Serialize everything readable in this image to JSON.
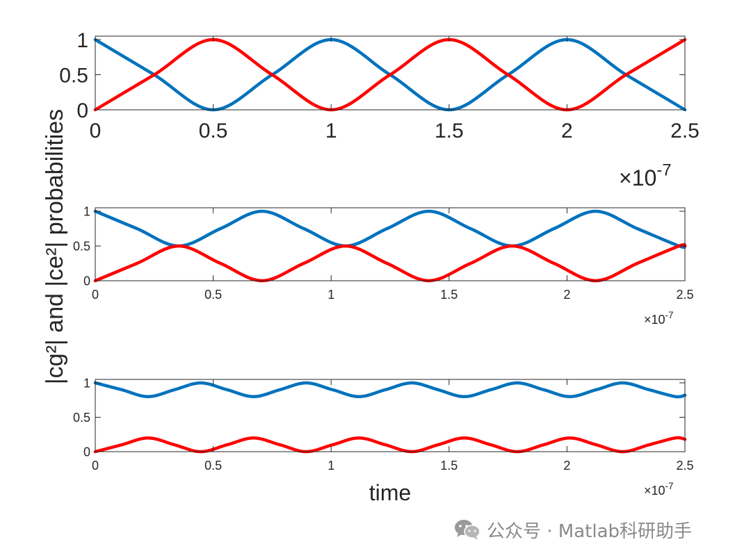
{
  "figure": {
    "ylabel": "|cg²| and |ce²| probabilities",
    "xlabel": "time",
    "exponent_base": "×10",
    "exponent_power": "-7"
  },
  "colors": {
    "cg": "#0072BD",
    "ce": "#FF0000",
    "axis": "#262626"
  },
  "watermark": {
    "icon": "wechat-icon",
    "text": "公众号 · Matlab科研助手"
  },
  "chart_data": [
    {
      "type": "line",
      "xlim": [
        0,
        2.5e-07
      ],
      "ylim": [
        0,
        1.05
      ],
      "x_ticks": [
        0,
        5e-08,
        1e-07,
        1.5e-07,
        2e-07,
        2.5e-07
      ],
      "x_tick_labels": [
        "0",
        "0.5",
        "1",
        "1.5",
        "2",
        "2.5"
      ],
      "y_ticks": [
        0,
        0.5,
        1
      ],
      "y_tick_labels": [
        "0",
        "0.5",
        "1"
      ],
      "grid": false,
      "series": [
        {
          "color": "#0072BD",
          "x": [
            0,
            2.5e-08,
            5e-08,
            7.5e-08,
            1e-07,
            1.25e-07,
            1.5e-07,
            1.75e-07,
            2e-07,
            2.25e-07,
            2.5e-07
          ],
          "y": [
            1,
            0.5,
            0,
            0.5,
            1,
            0.5,
            0,
            0.5,
            1,
            0.5,
            0
          ]
        },
        {
          "color": "#FF0000",
          "x": [
            0,
            2.5e-08,
            5e-08,
            7.5e-08,
            1e-07,
            1.25e-07,
            1.5e-07,
            1.75e-07,
            2e-07,
            2.25e-07,
            2.5e-07
          ],
          "y": [
            0,
            0.5,
            1,
            0.5,
            0,
            0.5,
            1,
            0.5,
            0,
            0.5,
            1
          ]
        }
      ]
    },
    {
      "type": "line",
      "xlim": [
        0,
        2.5e-07
      ],
      "ylim": [
        0,
        1.05
      ],
      "x_ticks": [
        0,
        5e-08,
        1e-07,
        1.5e-07,
        2e-07,
        2.5e-07
      ],
      "x_tick_labels": [
        "0",
        "0.5",
        "1",
        "1.5",
        "2",
        "2.5"
      ],
      "y_ticks": [
        0,
        0.5,
        1
      ],
      "y_tick_labels": [
        "0",
        "0.5",
        "1"
      ],
      "grid": false,
      "series": [
        {
          "color": "#0072BD",
          "x": [
            0,
            1.77e-08,
            3.54e-08,
            5.31e-08,
            7.07e-08,
            8.84e-08,
            1.061e-07,
            1.237e-07,
            1.414e-07,
            1.591e-07,
            1.768e-07,
            1.945e-07,
            2.121e-07,
            2.298e-07,
            2.475e-07,
            2.5e-07
          ],
          "y": [
            1,
            0.75,
            0.5,
            0.75,
            1,
            0.75,
            0.5,
            0.75,
            1,
            0.75,
            0.5,
            0.75,
            1,
            0.75,
            0.5,
            0.5
          ]
        },
        {
          "color": "#FF0000",
          "x": [
            0,
            1.77e-08,
            3.54e-08,
            5.31e-08,
            7.07e-08,
            8.84e-08,
            1.061e-07,
            1.237e-07,
            1.414e-07,
            1.591e-07,
            1.768e-07,
            1.945e-07,
            2.121e-07,
            2.298e-07,
            2.475e-07,
            2.5e-07
          ],
          "y": [
            0,
            0.25,
            0.5,
            0.25,
            0,
            0.25,
            0.5,
            0.25,
            0,
            0.25,
            0.5,
            0.25,
            0,
            0.25,
            0.5,
            0.5
          ]
        }
      ]
    },
    {
      "type": "line",
      "xlim": [
        0,
        2.5e-07
      ],
      "ylim": [
        0,
        1.05
      ],
      "x_ticks": [
        0,
        5e-08,
        1e-07,
        1.5e-07,
        2e-07,
        2.5e-07
      ],
      "x_tick_labels": [
        "0",
        "0.5",
        "1",
        "1.5",
        "2",
        "2.5"
      ],
      "y_ticks": [
        0,
        0.5,
        1
      ],
      "y_tick_labels": [
        "0",
        "0.5",
        "1"
      ],
      "grid": false,
      "series": [
        {
          "color": "#0072BD",
          "x": [
            0,
            1.12e-08,
            2.24e-08,
            3.36e-08,
            4.47e-08,
            5.59e-08,
            6.71e-08,
            7.83e-08,
            8.94e-08,
            1.006e-07,
            1.118e-07,
            1.23e-07,
            1.342e-07,
            1.453e-07,
            1.565e-07,
            1.677e-07,
            1.789e-07,
            1.901e-07,
            2.012e-07,
            2.124e-07,
            2.236e-07,
            2.348e-07,
            2.46e-07,
            2.5e-07
          ],
          "y": [
            1,
            0.9,
            0.8,
            0.9,
            1,
            0.9,
            0.8,
            0.9,
            1,
            0.9,
            0.8,
            0.9,
            1,
            0.9,
            0.8,
            0.9,
            1,
            0.9,
            0.8,
            0.9,
            1,
            0.9,
            0.8,
            0.82
          ]
        },
        {
          "color": "#FF0000",
          "x": [
            0,
            1.12e-08,
            2.24e-08,
            3.36e-08,
            4.47e-08,
            5.59e-08,
            6.71e-08,
            7.83e-08,
            8.94e-08,
            1.006e-07,
            1.118e-07,
            1.23e-07,
            1.342e-07,
            1.453e-07,
            1.565e-07,
            1.677e-07,
            1.789e-07,
            1.901e-07,
            2.012e-07,
            2.124e-07,
            2.236e-07,
            2.348e-07,
            2.46e-07,
            2.5e-07
          ],
          "y": [
            0,
            0.1,
            0.2,
            0.1,
            0,
            0.1,
            0.2,
            0.1,
            0,
            0.1,
            0.2,
            0.1,
            0,
            0.1,
            0.2,
            0.1,
            0,
            0.1,
            0.2,
            0.1,
            0,
            0.1,
            0.2,
            0.18
          ]
        }
      ]
    }
  ]
}
